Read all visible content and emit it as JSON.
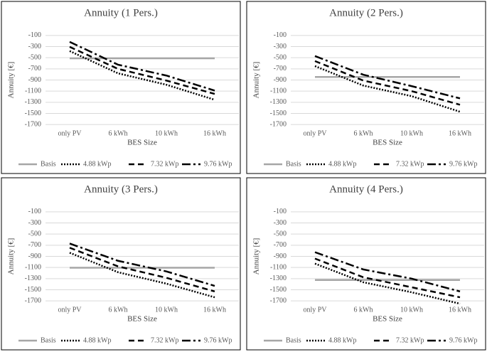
{
  "chart_data": [
    {
      "type": "line",
      "title": "Annuity (1 Pers.)",
      "x_label": "BES Size",
      "y_label": "Annuity [€]",
      "categories": [
        "only PV",
        "6 kWh",
        "10 kWh",
        "16 kWh"
      ],
      "ylim": [
        -1800,
        0
      ],
      "yticks": [
        -100,
        -300,
        -500,
        -700,
        -900,
        -1100,
        -1300,
        -1500,
        -1700
      ],
      "grid": true,
      "legend": "bottom",
      "series": [
        {
          "name": "Basis",
          "color": "#a6a6a6",
          "line_style": "solid",
          "values": [
            -510,
            -510,
            -510,
            -510
          ]
        },
        {
          "name": "4.88 kWp",
          "color": "#000000",
          "line_style": "dotted",
          "values": [
            -380,
            -780,
            -985,
            -1255
          ]
        },
        {
          "name": "7.32 kWp",
          "color": "#000000",
          "line_style": "dashed",
          "values": [
            -305,
            -700,
            -910,
            -1150
          ]
        },
        {
          "name": "9.76 kWp",
          "color": "#000000",
          "line_style": "dashdot",
          "values": [
            -215,
            -625,
            -820,
            -1090
          ]
        }
      ]
    },
    {
      "type": "line",
      "title": "Annuity (2 Pers.)",
      "x_label": "BES Size",
      "y_label": "Annuity [€]",
      "categories": [
        "only PV",
        "6 kWh",
        "10 kWh",
        "16 kWh"
      ],
      "ylim": [
        -1800,
        0
      ],
      "yticks": [
        -100,
        -300,
        -500,
        -700,
        -900,
        -1100,
        -1300,
        -1500,
        -1700
      ],
      "grid": true,
      "legend": "bottom",
      "series": [
        {
          "name": "Basis",
          "color": "#a6a6a6",
          "line_style": "solid",
          "values": [
            -845,
            -845,
            -845,
            -845
          ]
        },
        {
          "name": "4.88 kWp",
          "color": "#000000",
          "line_style": "dotted",
          "values": [
            -650,
            -1000,
            -1190,
            -1470
          ]
        },
        {
          "name": "7.32 kWp",
          "color": "#000000",
          "line_style": "dashed",
          "values": [
            -560,
            -910,
            -1100,
            -1345
          ]
        },
        {
          "name": "9.76 kWp",
          "color": "#000000",
          "line_style": "dashdot",
          "values": [
            -470,
            -805,
            -1010,
            -1230
          ]
        }
      ]
    },
    {
      "type": "line",
      "title": "Annuity (3 Pers.)",
      "x_label": "BES Size",
      "y_label": "Annuity [€]",
      "categories": [
        "only PV",
        "6 kWh",
        "10 kWh",
        "16 kWh"
      ],
      "ylim": [
        -1800,
        0
      ],
      "yticks": [
        -100,
        -300,
        -500,
        -700,
        -900,
        -1100,
        -1300,
        -1500,
        -1700
      ],
      "grid": true,
      "legend": "bottom",
      "series": [
        {
          "name": "Basis",
          "color": "#a6a6a6",
          "line_style": "solid",
          "values": [
            -1105,
            -1105,
            -1105,
            -1105
          ]
        },
        {
          "name": "4.88 kWp",
          "color": "#000000",
          "line_style": "dotted",
          "values": [
            -835,
            -1185,
            -1390,
            -1635
          ]
        },
        {
          "name": "7.32 kWp",
          "color": "#000000",
          "line_style": "dashed",
          "values": [
            -745,
            -1080,
            -1285,
            -1530
          ]
        },
        {
          "name": "9.76 kWp",
          "color": "#000000",
          "line_style": "dashdot",
          "values": [
            -670,
            -980,
            -1170,
            -1430
          ]
        }
      ]
    },
    {
      "type": "line",
      "title": "Annuity (4 Pers.)",
      "x_label": "BES Size",
      "y_label": "Annuity [€]",
      "categories": [
        "only PV",
        "6 kWh",
        "10 kWh",
        "16 kWh"
      ],
      "ylim": [
        -1800,
        0
      ],
      "yticks": [
        -100,
        -300,
        -500,
        -700,
        -900,
        -1100,
        -1300,
        -1500,
        -1700
      ],
      "grid": true,
      "legend": "bottom",
      "series": [
        {
          "name": "Basis",
          "color": "#a6a6a6",
          "line_style": "solid",
          "values": [
            -1325,
            -1325,
            -1325,
            -1325
          ]
        },
        {
          "name": "4.88 kWp",
          "color": "#000000",
          "line_style": "dotted",
          "values": [
            -1030,
            -1365,
            -1545,
            -1750
          ]
        },
        {
          "name": "7.32 kWp",
          "color": "#000000",
          "line_style": "dashed",
          "values": [
            -940,
            -1275,
            -1455,
            -1635
          ]
        },
        {
          "name": "9.76 kWp",
          "color": "#000000",
          "line_style": "dashdot",
          "values": [
            -825,
            -1135,
            -1300,
            -1530
          ]
        }
      ]
    }
  ]
}
